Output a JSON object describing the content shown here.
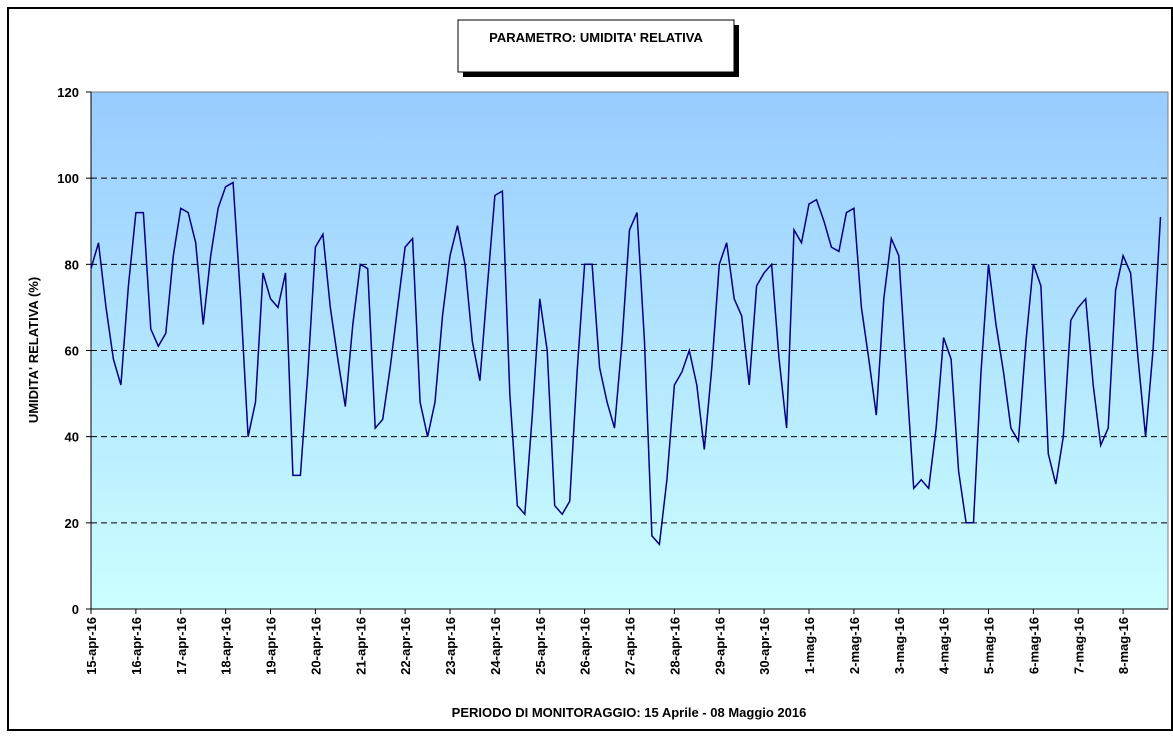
{
  "chart_data": {
    "type": "line",
    "title": "PARAMETRO: UMIDITA' RELATIVA",
    "y_label": "UMIDITA' RELATIVA (%)",
    "x_label": "PERIODO DI MONITORAGGIO: 15 Aprile - 08 Maggio 2016",
    "ylim": [
      0,
      120
    ],
    "yticks": [
      0,
      20,
      40,
      60,
      80,
      100,
      120
    ],
    "grid": true,
    "xlim": [
      0,
      576
    ],
    "xticks": [
      {
        "value": 0,
        "label": "15-apr-16"
      },
      {
        "value": 24,
        "label": "16-apr-16"
      },
      {
        "value": 48,
        "label": "17-apr-16"
      },
      {
        "value": 72,
        "label": "18-apr-16"
      },
      {
        "value": 96,
        "label": "19-apr-16"
      },
      {
        "value": 120,
        "label": "20-apr-16"
      },
      {
        "value": 144,
        "label": "21-apr-16"
      },
      {
        "value": 168,
        "label": "22-apr-16"
      },
      {
        "value": 192,
        "label": "23-apr-16"
      },
      {
        "value": 216,
        "label": "24-apr-16"
      },
      {
        "value": 240,
        "label": "25-apr-16"
      },
      {
        "value": 264,
        "label": "26-apr-16"
      },
      {
        "value": 288,
        "label": "27-apr-16"
      },
      {
        "value": 312,
        "label": "28-apr-16"
      },
      {
        "value": 336,
        "label": "29-apr-16"
      },
      {
        "value": 360,
        "label": "30-apr-16"
      },
      {
        "value": 384,
        "label": "1-mag-16"
      },
      {
        "value": 408,
        "label": "2-mag-16"
      },
      {
        "value": 432,
        "label": "3-mag-16"
      },
      {
        "value": 456,
        "label": "4-mag-16"
      },
      {
        "value": 480,
        "label": "5-mag-16"
      },
      {
        "value": 504,
        "label": "6-mag-16"
      },
      {
        "value": 528,
        "label": "7-mag-16"
      },
      {
        "value": 552,
        "label": "8-mag-16"
      }
    ],
    "x": [
      0,
      4,
      8,
      12,
      16,
      20,
      24,
      28,
      32,
      36,
      40,
      44,
      48,
      52,
      56,
      60,
      64,
      68,
      72,
      76,
      80,
      84,
      88,
      92,
      96,
      100,
      104,
      108,
      112,
      116,
      120,
      124,
      128,
      132,
      136,
      140,
      144,
      148,
      152,
      156,
      160,
      164,
      168,
      172,
      176,
      180,
      184,
      188,
      192,
      196,
      200,
      204,
      208,
      212,
      216,
      220,
      224,
      228,
      232,
      236,
      240,
      244,
      248,
      252,
      256,
      260,
      264,
      268,
      272,
      276,
      280,
      284,
      288,
      292,
      296,
      300,
      304,
      308,
      312,
      316,
      320,
      324,
      328,
      332,
      336,
      340,
      344,
      348,
      352,
      356,
      360,
      364,
      368,
      372,
      376,
      380,
      384,
      388,
      392,
      396,
      400,
      404,
      408,
      412,
      416,
      420,
      424,
      428,
      432,
      436,
      440,
      444,
      448,
      452,
      456,
      460,
      464,
      468,
      472,
      476,
      480,
      484,
      488,
      492,
      496,
      500,
      504,
      508,
      512,
      516,
      520,
      524,
      528,
      532,
      536,
      540,
      544,
      548,
      552,
      556,
      560,
      564,
      568,
      572
    ],
    "series": [
      {
        "color": "#000080",
        "values": [
          79,
          85,
          70,
          58,
          52,
          75,
          92,
          92,
          65,
          61,
          64,
          82,
          93,
          92,
          85,
          66,
          82,
          93,
          98,
          99,
          72,
          40,
          48,
          78,
          72,
          70,
          78,
          31,
          31,
          55,
          84,
          87,
          70,
          58,
          47,
          66,
          80,
          79,
          42,
          44,
          56,
          70,
          84,
          86,
          48,
          40,
          48,
          68,
          82,
          89,
          80,
          62,
          53,
          75,
          96,
          97,
          50,
          24,
          22,
          45,
          72,
          60,
          24,
          22,
          25,
          55,
          80,
          80,
          56,
          48,
          42,
          62,
          88,
          92,
          62,
          17,
          15,
          30,
          52,
          55,
          60,
          52,
          37,
          56,
          80,
          85,
          72,
          68,
          52,
          75,
          78,
          80,
          58,
          42,
          88,
          85,
          94,
          95,
          90,
          84,
          83,
          92,
          93,
          70,
          58,
          45,
          72,
          86,
          82,
          55,
          28,
          30,
          28,
          42,
          63,
          58,
          32,
          20,
          20,
          55,
          80,
          66,
          55,
          42,
          39,
          62,
          80,
          75,
          36,
          29,
          40,
          67,
          70,
          72,
          52,
          38,
          42,
          74,
          82,
          78,
          58,
          40,
          60,
          91
        ]
      }
    ]
  }
}
